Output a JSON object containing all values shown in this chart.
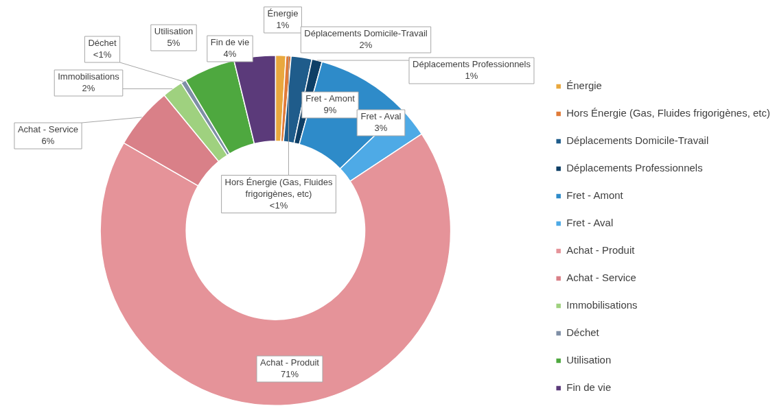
{
  "chart_data": {
    "type": "donut",
    "categories": [
      "Énergie",
      "Hors Énergie (Gas, Fluides frigorigènes, etc)",
      "Déplacements Domicile-Travail",
      "Déplacements Professionnels",
      "Fret - Amont",
      "Fret - Aval",
      "Achat - Produit",
      "Achat - Service",
      "Immobilisations",
      "Déchet",
      "Utilisation",
      "Fin de vie"
    ],
    "values": [
      1,
      0.5,
      2,
      1,
      9,
      3,
      71,
      6,
      2,
      0.5,
      5,
      4
    ],
    "value_labels": [
      "1%",
      "<1%",
      "2%",
      "1%",
      "9%",
      "3%",
      "71%",
      "6%",
      "2%",
      "<1%",
      "5%",
      "4%"
    ],
    "colors": [
      "#e9a83e",
      "#e07b39",
      "#1f5c8b",
      "#0e3f66",
      "#2e8bc9",
      "#4eaae6",
      "#e59399",
      "#d98088",
      "#9fd17f",
      "#7f8fa6",
      "#4ea83f",
      "#5b3a7a"
    ],
    "legend": "right"
  }
}
